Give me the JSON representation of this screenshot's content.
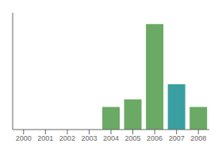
{
  "chart_data": {
    "type": "bar",
    "categories": [
      "2000",
      "2001",
      "2002",
      "2003",
      "2004",
      "2005",
      "2006",
      "2007",
      "2008"
    ],
    "values": [
      0,
      0,
      0,
      0,
      3,
      4,
      14,
      6,
      3
    ],
    "colors": [
      "#6aaa64",
      "#6aaa64",
      "#6aaa64",
      "#6aaa64",
      "#6aaa64",
      "#6aaa64",
      "#6aaa64",
      "#3a9fa0",
      "#6aaa64"
    ],
    "ylim": [
      0,
      15.5
    ],
    "yticks": [],
    "grid": false,
    "tick_labels": "x"
  }
}
